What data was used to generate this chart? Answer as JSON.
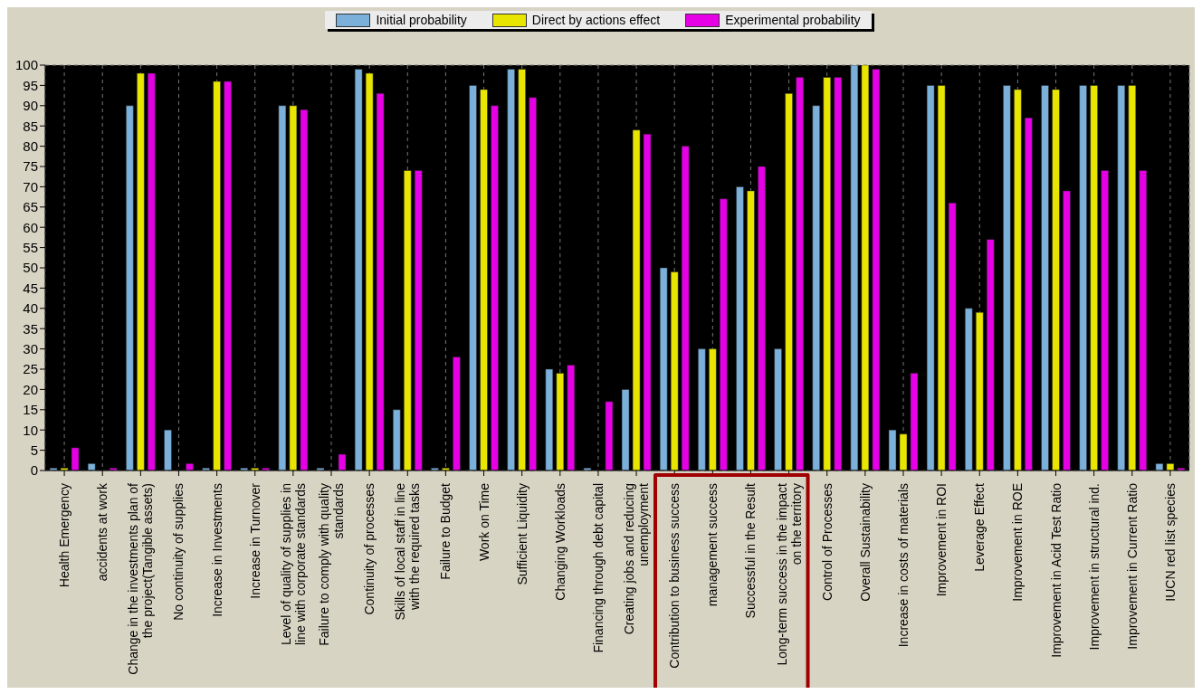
{
  "chart_data": {
    "type": "bar",
    "categories": [
      "Health Emergency",
      "accidents at work",
      "Change in the investments plan of the project(Tangible assets)",
      "No continuity of supplies",
      "Increase in Investments",
      "Increase in Turnover",
      "Level of quality of supplies in line with corporate standards",
      "Failure to comply with quality standards",
      "Continuity of processes",
      "Skills of local staff in line with the required tasks",
      "Failure to Budget",
      "Work on Time",
      "Sufficient Liquidity",
      "Changing Workloads",
      "Financing through debt capital",
      "Creating jobs and reducing unemployment",
      "Contribution to business success",
      "management success",
      "Successful in the Result",
      "Long-term success in the impact on the territory",
      "Control of Processes",
      "Overall Sustainability",
      "Increase in costs of materials",
      "Improvement in ROI",
      "Leverage Effect",
      "Improvement in ROE",
      "Improvement in Acid Test Ratio",
      "Improvement in structural ind.",
      "Improvement in Current Ratio",
      "IUCN red list species"
    ],
    "series": [
      {
        "name": "Initial probability",
        "color": "#7ab0da",
        "values": [
          0.6,
          1.7,
          90,
          10,
          0.6,
          0.6,
          90,
          0.6,
          99,
          15,
          0.6,
          95,
          99,
          25,
          0.6,
          20,
          50,
          30,
          70,
          30,
          90,
          100,
          10,
          95,
          40,
          95,
          95,
          95,
          95,
          1.7
        ]
      },
      {
        "name": "Direct by actions effect",
        "color": "#e8e600",
        "values": [
          0.6,
          0,
          98,
          0,
          96,
          0.6,
          90,
          0,
          98,
          74,
          0.6,
          94,
          99,
          24,
          0,
          84,
          49,
          30,
          69,
          93,
          97,
          100,
          9,
          95,
          39,
          94,
          94,
          95,
          95,
          1.7
        ]
      },
      {
        "name": "Experimental probability",
        "color": "#e600e6",
        "values": [
          5.6,
          0.6,
          98,
          1.7,
          96,
          0.6,
          89,
          4,
          93,
          74,
          28,
          90,
          92,
          26,
          17,
          83,
          80,
          67,
          75,
          97,
          97,
          99,
          24,
          66,
          57,
          87,
          69,
          74,
          74,
          0.6
        ]
      }
    ],
    "ylim": [
      0,
      100
    ],
    "yticks": [
      0,
      5,
      10,
      15,
      20,
      25,
      30,
      35,
      40,
      45,
      50,
      55,
      60,
      65,
      70,
      75,
      80,
      85,
      90,
      95,
      100
    ],
    "grid": true,
    "legend": "top"
  }
}
